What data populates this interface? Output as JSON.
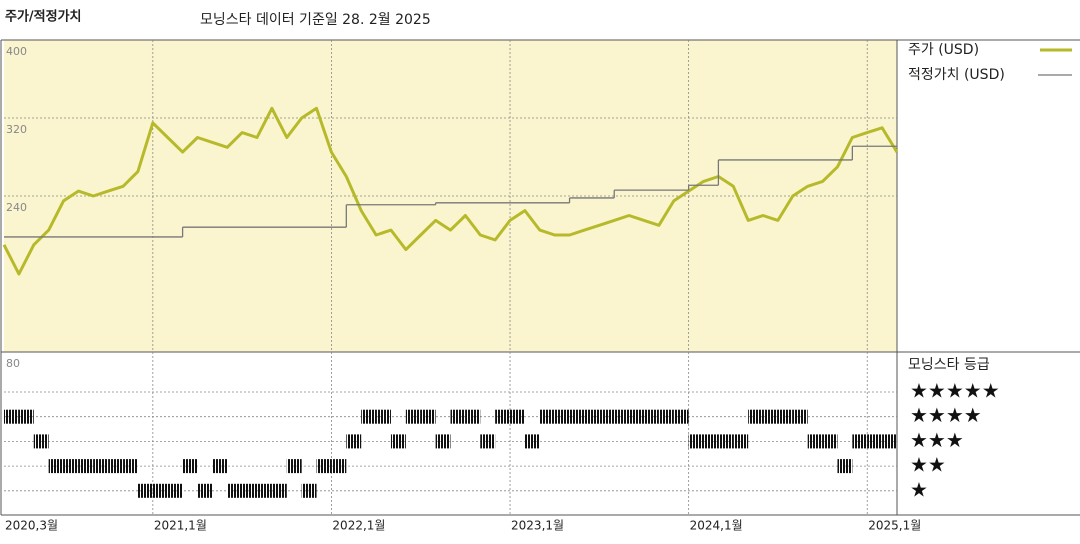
{
  "chart_data": {
    "type": "line",
    "title": "주가/적정가치",
    "subtitle": "모닝스타 데이터 기준일 28. 2월 2025",
    "x": [
      "2020-03",
      "2020-04",
      "2020-05",
      "2020-06",
      "2020-07",
      "2020-08",
      "2020-09",
      "2020-10",
      "2020-11",
      "2020-12",
      "2021-01",
      "2021-02",
      "2021-03",
      "2021-04",
      "2021-05",
      "2021-06",
      "2021-07",
      "2021-08",
      "2021-09",
      "2021-10",
      "2021-11",
      "2021-12",
      "2022-01",
      "2022-02",
      "2022-03",
      "2022-04",
      "2022-05",
      "2022-06",
      "2022-07",
      "2022-08",
      "2022-09",
      "2022-10",
      "2022-11",
      "2022-12",
      "2023-01",
      "2023-02",
      "2023-03",
      "2023-04",
      "2023-05",
      "2023-06",
      "2023-07",
      "2023-08",
      "2023-09",
      "2023-10",
      "2023-11",
      "2023-12",
      "2024-01",
      "2024-02",
      "2024-03",
      "2024-04",
      "2024-05",
      "2024-06",
      "2024-07",
      "2024-08",
      "2024-09",
      "2024-10",
      "2024-11",
      "2024-12",
      "2025-01",
      "2025-02",
      "2025-03"
    ],
    "series": [
      {
        "name": "주가 (USD)",
        "color": "#b6ba2a",
        "values": [
          190,
          160,
          190,
          205,
          235,
          245,
          240,
          245,
          250,
          265,
          315,
          300,
          285,
          300,
          295,
          290,
          305,
          300,
          330,
          300,
          320,
          330,
          285,
          260,
          225,
          200,
          205,
          185,
          200,
          215,
          205,
          220,
          200,
          195,
          215,
          225,
          205,
          200,
          200,
          205,
          210,
          215,
          220,
          215,
          210,
          235,
          245,
          255,
          260,
          250,
          215,
          220,
          215,
          240,
          250,
          255,
          270,
          300,
          305,
          310,
          285
        ]
      },
      {
        "name": "적정가치 (USD)",
        "color": "#777777",
        "step": true,
        "x": [
          "2020-03",
          "2021-03",
          "2022-02",
          "2022-08",
          "2023-05",
          "2023-08",
          "2024-01",
          "2024-03",
          "2024-12",
          "2025-03"
        ],
        "values": [
          198,
          208,
          231,
          233,
          238,
          246,
          251,
          277,
          291,
          291
        ]
      }
    ],
    "xlim": [
      "2020-03",
      "2025-03"
    ],
    "xticks": [
      {
        "value": "2020-03",
        "label": "2020,3월"
      },
      {
        "value": "2021-01",
        "label": "2021,1월"
      },
      {
        "value": "2022-01",
        "label": "2022,1월"
      },
      {
        "value": "2023-01",
        "label": "2023,1월"
      },
      {
        "value": "2024-01",
        "label": "2024,1월"
      },
      {
        "value": "2025-01",
        "label": "2025,1월"
      }
    ],
    "ylim": [
      80,
      400
    ],
    "yticks": [
      80,
      240,
      320,
      400
    ],
    "grid": true,
    "background": "#faf5cf",
    "rating": {
      "title": "모닝스타 등급",
      "levels": [
        5,
        4,
        3,
        2,
        1
      ],
      "level_labels": [
        "★★★★★",
        "★★★★",
        "★★★",
        "★★",
        "★"
      ],
      "values": [
        4,
        4,
        3,
        2,
        2,
        2,
        2,
        2,
        2,
        1,
        1,
        1,
        2,
        1,
        2,
        1,
        1,
        1,
        1,
        2,
        1,
        2,
        2,
        3,
        4,
        4,
        3,
        4,
        4,
        3,
        4,
        4,
        3,
        4,
        4,
        3,
        4,
        4,
        4,
        4,
        4,
        4,
        4,
        4,
        4,
        4,
        3,
        3,
        3,
        3,
        4,
        4,
        4,
        4,
        3,
        3,
        2,
        3,
        3,
        3,
        3
      ]
    }
  }
}
